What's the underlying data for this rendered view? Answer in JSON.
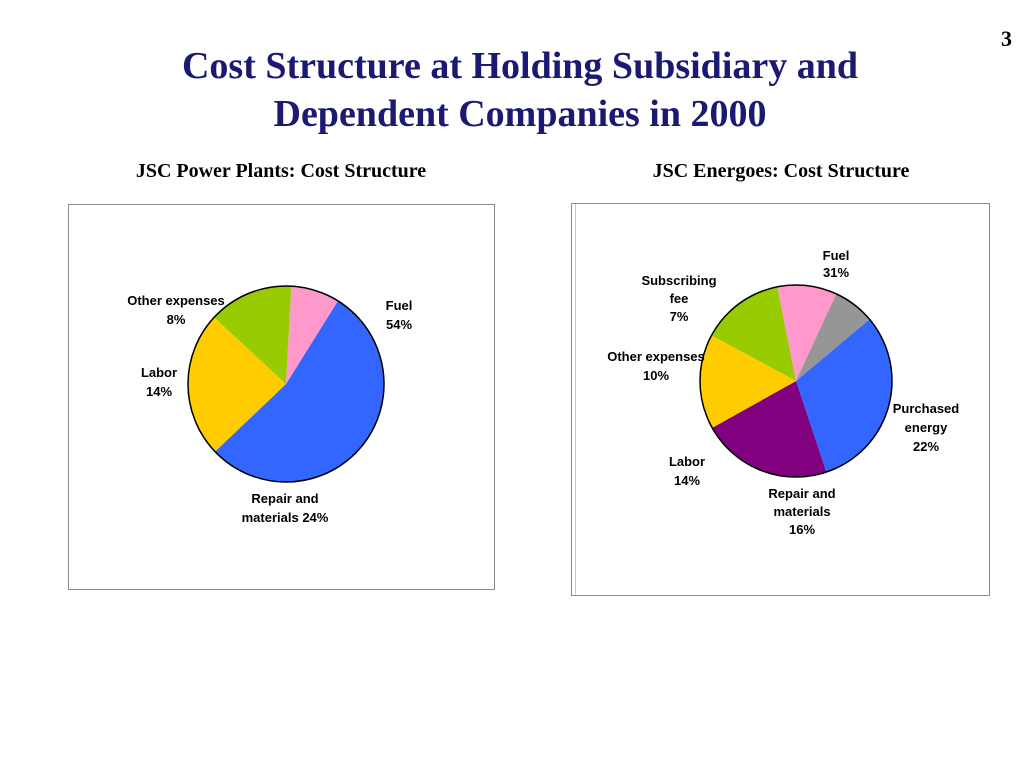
{
  "slide": {
    "page_number": "3",
    "title_line1": "Cost Structure at Holding Subsidiary and",
    "title_line2": "Dependent Companies in 2000"
  },
  "colors": {
    "title": "#1a1a73",
    "fuel": "#3366ff",
    "repair": "#ffcc00",
    "labor": "#99cc00",
    "other_expenses": "#ff99cc",
    "purchased_energy": "#800080",
    "subscribing_fee": "#969696"
  },
  "chart_data": [
    {
      "type": "pie",
      "title": "JSC Power Plants: Cost Structure",
      "series": [
        {
          "category": "Fuel",
          "value": 54,
          "color": "#3366ff",
          "label_lines": [
            "Fuel",
            "54%"
          ]
        },
        {
          "category": "Repair and materials",
          "value": 24,
          "color": "#ffcc00",
          "label_lines": [
            "Repair and",
            "materials 24%"
          ]
        },
        {
          "category": "Labor",
          "value": 14,
          "color": "#99cc00",
          "label_lines": [
            "Labor",
            "14%"
          ]
        },
        {
          "category": "Other expenses",
          "value": 8,
          "color": "#ff99cc",
          "label_lines": [
            "Other expenses",
            "8%"
          ]
        }
      ],
      "legend": "none",
      "data_labels": "outside"
    },
    {
      "type": "pie",
      "title": "JSC Energoes: Cost Structure",
      "series": [
        {
          "category": "Fuel",
          "value": 31,
          "color": "#3366ff",
          "label_lines": [
            "Fuel",
            "31%"
          ]
        },
        {
          "category": "Purchased energy",
          "value": 22,
          "color": "#800080",
          "label_lines": [
            "Purchased",
            "energy",
            "22%"
          ]
        },
        {
          "category": "Repair and materials",
          "value": 16,
          "color": "#ffcc00",
          "label_lines": [
            "Repair and",
            "materials",
            "16%"
          ]
        },
        {
          "category": "Labor",
          "value": 14,
          "color": "#99cc00",
          "label_lines": [
            "Labor",
            "14%"
          ]
        },
        {
          "category": "Other expenses",
          "value": 10,
          "color": "#ff99cc",
          "label_lines": [
            "Other expenses",
            "10%"
          ]
        },
        {
          "category": "Subscribing fee",
          "value": 7,
          "color": "#969696",
          "label_lines": [
            "Subscribing",
            "fee",
            "7%"
          ]
        }
      ],
      "legend": "none",
      "data_labels": "outside"
    }
  ]
}
